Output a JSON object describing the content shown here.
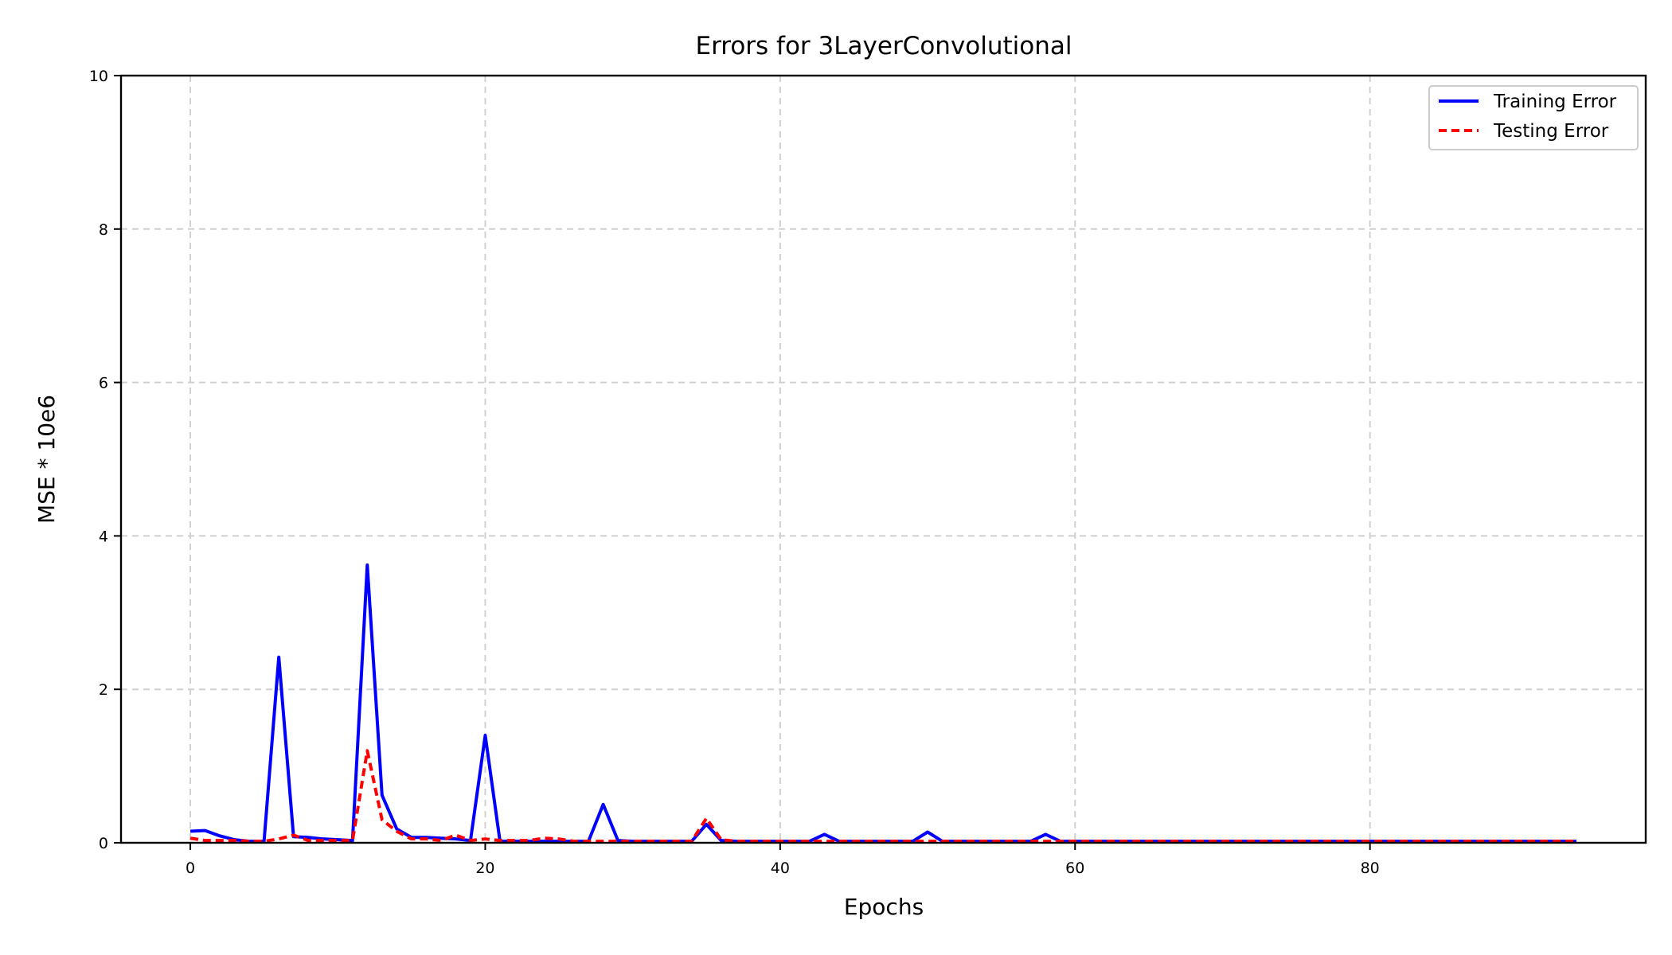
{
  "chart_data": {
    "type": "line",
    "title": "Errors for 3LayerConvolutional",
    "xlabel": "Epochs",
    "ylabel": "MSE * 10e6",
    "xlim": [
      -4.7,
      98.7
    ],
    "ylim": [
      0,
      10
    ],
    "xticks": [
      0,
      20,
      40,
      60,
      80
    ],
    "yticks": [
      0,
      2,
      4,
      6,
      8,
      10
    ],
    "grid": true,
    "legend_position": "top-right",
    "x": [
      0,
      1,
      2,
      3,
      4,
      5,
      6,
      7,
      8,
      9,
      10,
      11,
      12,
      13,
      14,
      15,
      16,
      17,
      18,
      19,
      20,
      21,
      22,
      23,
      24,
      25,
      26,
      27,
      28,
      29,
      30,
      31,
      32,
      33,
      34,
      35,
      36,
      37,
      38,
      39,
      40,
      41,
      42,
      43,
      44,
      45,
      46,
      47,
      48,
      49,
      50,
      51,
      52,
      53,
      54,
      55,
      56,
      57,
      58,
      59,
      60,
      61,
      62,
      63,
      64,
      65,
      66,
      67,
      68,
      69,
      70,
      71,
      72,
      73,
      74,
      75,
      76,
      77,
      78,
      79,
      80,
      81,
      82,
      83,
      84,
      85,
      86,
      87,
      88,
      89,
      90,
      91,
      92,
      93,
      94
    ],
    "series": [
      {
        "name": "Training Error",
        "color": "#0000ff",
        "style": "solid",
        "values": [
          0.15,
          0.16,
          0.09,
          0.04,
          0.02,
          0.02,
          2.42,
          0.08,
          0.07,
          0.05,
          0.04,
          0.03,
          3.62,
          0.62,
          0.18,
          0.07,
          0.07,
          0.06,
          0.05,
          0.03,
          1.4,
          0.02,
          0.02,
          0.02,
          0.02,
          0.02,
          0.02,
          0.02,
          0.5,
          0.03,
          0.02,
          0.02,
          0.02,
          0.02,
          0.02,
          0.24,
          0.03,
          0.02,
          0.02,
          0.02,
          0.02,
          0.02,
          0.02,
          0.11,
          0.02,
          0.02,
          0.02,
          0.02,
          0.02,
          0.02,
          0.14,
          0.02,
          0.02,
          0.02,
          0.02,
          0.02,
          0.02,
          0.02,
          0.11,
          0.02,
          0.02,
          0.02,
          0.02,
          0.02,
          0.02,
          0.02,
          0.02,
          0.02,
          0.02,
          0.02,
          0.02,
          0.02,
          0.02,
          0.02,
          0.02,
          0.02,
          0.02,
          0.02,
          0.02,
          0.02,
          0.02,
          0.02,
          0.02,
          0.02,
          0.02,
          0.02,
          0.02,
          0.02,
          0.02,
          0.02,
          0.02,
          0.02,
          0.02,
          0.02,
          0.02
        ]
      },
      {
        "name": "Testing Error",
        "color": "#ff0000",
        "style": "dashed",
        "values": [
          0.06,
          0.03,
          0.03,
          0.03,
          0.02,
          0.02,
          0.05,
          0.1,
          0.03,
          0.03,
          0.03,
          0.03,
          1.2,
          0.3,
          0.15,
          0.05,
          0.05,
          0.03,
          0.1,
          0.03,
          0.05,
          0.03,
          0.03,
          0.03,
          0.06,
          0.05,
          0.02,
          0.02,
          0.02,
          0.02,
          0.02,
          0.02,
          0.02,
          0.02,
          0.02,
          0.32,
          0.04,
          0.02,
          0.02,
          0.02,
          0.02,
          0.02,
          0.02,
          0.02,
          0.02,
          0.02,
          0.02,
          0.02,
          0.02,
          0.02,
          0.02,
          0.02,
          0.02,
          0.02,
          0.02,
          0.02,
          0.02,
          0.02,
          0.02,
          0.02,
          0.02,
          0.02,
          0.02,
          0.02,
          0.02,
          0.02,
          0.02,
          0.02,
          0.02,
          0.02,
          0.02,
          0.02,
          0.02,
          0.02,
          0.02,
          0.02,
          0.02,
          0.02,
          0.02,
          0.02,
          0.02,
          0.02,
          0.02,
          0.02,
          0.02,
          0.02,
          0.02,
          0.02,
          0.02,
          0.02,
          0.02,
          0.02,
          0.02,
          0.02,
          0.02
        ]
      }
    ]
  }
}
